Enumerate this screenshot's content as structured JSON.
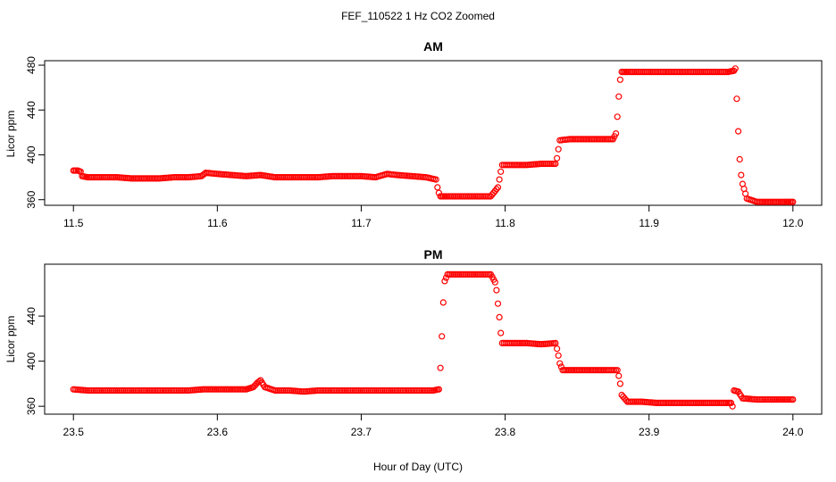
{
  "chart_data": {
    "type": "scatter",
    "title": "FEF_110522  1 Hz CO2 Zoomed",
    "xlabel": "Hour of Day (UTC)",
    "point_color": "#ff0000",
    "panels": [
      {
        "title": "AM",
        "ylabel": "Licor ppm",
        "xlim": [
          11.48,
          12.02
        ],
        "ylim": [
          355,
          484
        ],
        "xticks": [
          11.5,
          11.6,
          11.7,
          11.8,
          11.9,
          12.0
        ],
        "xtick_labels": [
          "11.5",
          "11.6",
          "11.7",
          "11.8",
          "11.9",
          "12.0"
        ],
        "yticks": [
          360,
          400,
          440,
          480
        ],
        "ytick_labels": [
          "360",
          "400",
          "440",
          "480"
        ],
        "series": [
          {
            "x": [
              11.5,
              11.503,
              11.505,
              11.506,
              11.51,
              11.52,
              11.53,
              11.54,
              11.55,
              11.56,
              11.57,
              11.58,
              11.589,
              11.592,
              11.6,
              11.61,
              11.62,
              11.63,
              11.64,
              11.65,
              11.66,
              11.67,
              11.68,
              11.69,
              11.7,
              11.71,
              11.718,
              11.725,
              11.735,
              11.745,
              11.752,
              11.753,
              11.754,
              11.755,
              11.76,
              11.77,
              11.78,
              11.79,
              11.795,
              11.796,
              11.797,
              11.798,
              11.805,
              11.815,
              11.825,
              11.835,
              11.836,
              11.837,
              11.838,
              11.845,
              11.855,
              11.865,
              11.875,
              11.877,
              11.878,
              11.879,
              11.88,
              11.881,
              11.885,
              11.895,
              11.905,
              11.915,
              11.925,
              11.935,
              11.945,
              11.955,
              11.959,
              11.96,
              11.961,
              11.962,
              11.963,
              11.964,
              11.965,
              11.968,
              11.975,
              11.985,
              11.995,
              12.0
            ],
            "y": [
              386,
              386,
              385,
              381,
              380,
              380,
              380,
              379,
              379,
              379,
              380,
              380,
              381,
              384,
              383,
              382,
              381,
              382,
              380,
              380,
              380,
              380,
              381,
              381,
              381,
              380,
              383,
              382,
              381,
              380,
              378,
              371,
              366,
              363,
              363,
              363,
              363,
              363,
              371,
              378,
              385,
              391,
              391,
              391,
              392,
              392,
              397,
              405,
              413,
              414,
              414,
              414,
              414,
              419,
              434,
              452,
              467,
              474,
              474,
              474,
              474,
              474,
              474,
              474,
              474,
              474,
              475,
              477,
              450,
              421,
              396,
              382,
              374,
              361,
              358,
              358,
              358,
              358
            ]
          }
        ]
      },
      {
        "title": "PM",
        "ylabel": "Licor ppm",
        "xlim": [
          23.48,
          24.02
        ],
        "ylim": [
          353,
          486
        ],
        "xticks": [
          23.5,
          23.6,
          23.7,
          23.8,
          23.9,
          24.0
        ],
        "xtick_labels": [
          "23.5",
          "23.6",
          "23.7",
          "23.8",
          "23.9",
          "24.0"
        ],
        "yticks": [
          360,
          400,
          440
        ],
        "ytick_labels": [
          "360",
          "400",
          "440"
        ],
        "series": [
          {
            "x": [
              23.5,
              23.51,
              23.52,
              23.53,
              23.54,
              23.55,
              23.56,
              23.57,
              23.58,
              23.59,
              23.6,
              23.61,
              23.62,
              23.625,
              23.628,
              23.63,
              23.633,
              23.64,
              23.65,
              23.66,
              23.67,
              23.68,
              23.69,
              23.7,
              23.71,
              23.72,
              23.73,
              23.74,
              23.75,
              23.754,
              23.755,
              23.756,
              23.757,
              23.758,
              23.76,
              23.77,
              23.78,
              23.79,
              23.793,
              23.794,
              23.795,
              23.796,
              23.797,
              23.798,
              23.805,
              23.815,
              23.825,
              23.835,
              23.836,
              23.837,
              23.838,
              23.84,
              23.85,
              23.86,
              23.87,
              23.878,
              23.879,
              23.88,
              23.881,
              23.885,
              23.895,
              23.905,
              23.915,
              23.925,
              23.935,
              23.945,
              23.955,
              23.957,
              23.958,
              23.959,
              23.962,
              23.965,
              23.975,
              23.985,
              24.0
            ],
            "y": [
              375,
              374,
              374,
              374,
              374,
              374,
              374,
              374,
              374,
              375,
              375,
              375,
              375,
              377,
              381,
              383,
              377,
              374,
              374,
              373,
              374,
              374,
              374,
              374,
              374,
              374,
              374,
              374,
              374,
              375,
              394,
              422,
              452,
              471,
              477,
              477,
              477,
              477,
              470,
              463,
              451,
              439,
              425,
              416,
              416,
              416,
              415,
              416,
              411,
              405,
              398,
              392,
              392,
              392,
              392,
              392,
              387,
              380,
              370,
              364,
              364,
              363,
              363,
              363,
              363,
              363,
              363,
              363,
              360,
              374,
              373,
              367,
              366,
              366,
              366
            ]
          }
        ]
      }
    ]
  }
}
